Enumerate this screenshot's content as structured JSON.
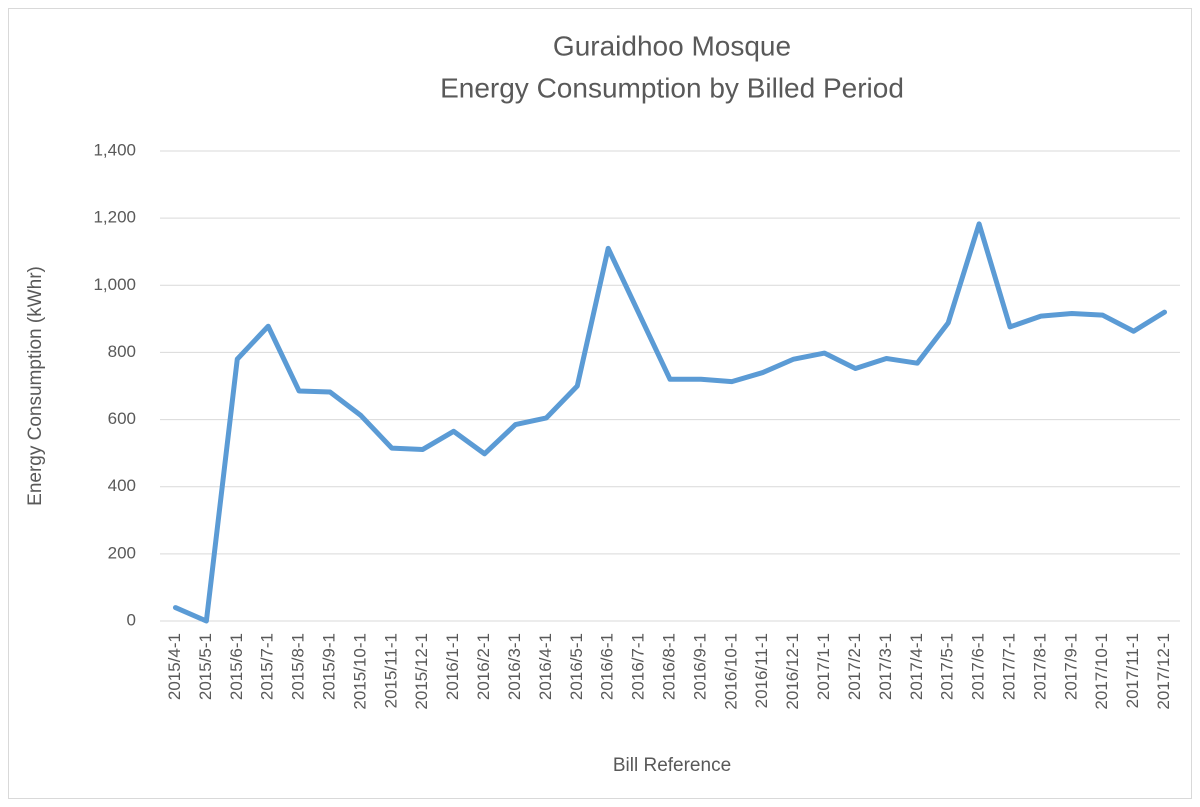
{
  "chart_data": {
    "type": "line",
    "title": "Guraidhoo Mosque",
    "subtitle": "Energy Consumption by Billed Period",
    "x_label": "Bill Reference",
    "y_label": "Energy Consumption (kWhr)",
    "categories": [
      "2015/4-1",
      "2015/5-1",
      "2015/6-1",
      "2015/7-1",
      "2015/8-1",
      "2015/9-1",
      "2015/10-1",
      "2015/11-1",
      "2015/12-1",
      "2016/1-1",
      "2016/2-1",
      "2016/3-1",
      "2016/4-1",
      "2016/5-1",
      "2016/6-1",
      "2016/7-1",
      "2016/8-1",
      "2016/9-1",
      "2016/10-1",
      "2016/11-1",
      "2016/12-1",
      "2017/1-1",
      "2017/2-1",
      "2017/3-1",
      "2017/4-1",
      "2017/5-1",
      "2017/6-1",
      "2017/7-1",
      "2017/8-1",
      "2017/9-1",
      "2017/10-1",
      "2017/11-1",
      "2017/12-1"
    ],
    "values": [
      40,
      0,
      780,
      878,
      685,
      682,
      612,
      515,
      511,
      565,
      498,
      585,
      605,
      700,
      1110,
      915,
      720,
      720,
      713,
      740,
      780,
      798,
      752,
      782,
      768,
      888,
      1183,
      876,
      908,
      916,
      911,
      863,
      920
    ],
    "color": "#5b9bd5",
    "ylim": [
      0,
      1400
    ],
    "yticks": [
      0,
      {
        "value": 200,
        "label": "200"
      },
      {
        "value": 400,
        "label": "400"
      },
      {
        "value": 600,
        "label": "600"
      },
      {
        "value": 800,
        "label": "800"
      },
      {
        "value": 1000,
        "label": "1,000"
      },
      {
        "value": 1200,
        "label": "1,200"
      },
      {
        "value": 1400,
        "label": "1,400"
      }
    ],
    "grid": true
  }
}
